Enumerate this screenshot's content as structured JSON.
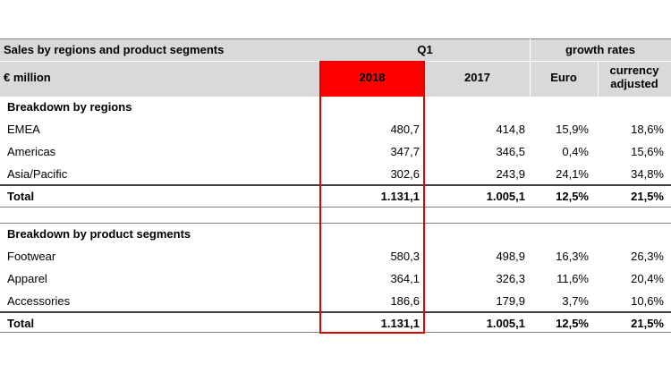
{
  "header": {
    "title": "Sales by regions and product segments",
    "period": "Q1",
    "growth_title": "growth rates",
    "unit": "€ million",
    "col_2018": "2018",
    "col_2017": "2017",
    "col_euro": "Euro",
    "col_currency_adjusted": "currency adjusted"
  },
  "regions": {
    "title": "Breakdown by regions",
    "rows": [
      {
        "label": "EMEA",
        "v2018": "480,7",
        "v2017": "414,8",
        "euro": "15,9%",
        "adj": "18,6%"
      },
      {
        "label": "Americas",
        "v2018": "347,7",
        "v2017": "346,5",
        "euro": "0,4%",
        "adj": "15,6%"
      },
      {
        "label": "Asia/Pacific",
        "v2018": "302,6",
        "v2017": "243,9",
        "euro": "24,1%",
        "adj": "34,8%"
      }
    ],
    "total": {
      "label": "Total",
      "v2018": "1.131,1",
      "v2017": "1.005,1",
      "euro": "12,5%",
      "adj": "21,5%"
    }
  },
  "segments": {
    "title": "Breakdown by product segments",
    "rows": [
      {
        "label": "Footwear",
        "v2018": "580,3",
        "v2017": "498,9",
        "euro": "16,3%",
        "adj": "26,3%"
      },
      {
        "label": "Apparel",
        "v2018": "364,1",
        "v2017": "326,3",
        "euro": "11,6%",
        "adj": "20,4%"
      },
      {
        "label": "Accessories",
        "v2018": "186,6",
        "v2017": "179,9",
        "euro": "3,7%",
        "adj": "10,6%"
      }
    ],
    "total": {
      "label": "Total",
      "v2018": "1.131,1",
      "v2017": "1.005,1",
      "euro": "12,5%",
      "adj": "21,5%"
    }
  },
  "colors": {
    "highlight": "#ff0000",
    "header_bg": "#d9d9d9"
  }
}
